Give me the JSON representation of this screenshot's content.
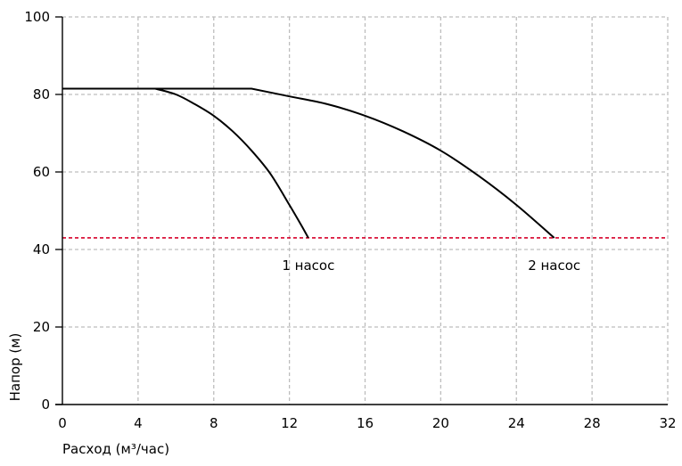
{
  "chart_data": {
    "type": "line",
    "title": "",
    "xlabel": "Расход (м³/час)",
    "ylabel": "Напор (м)",
    "xlim": [
      0,
      32
    ],
    "ylim": [
      0,
      100
    ],
    "xticks": [
      0,
      4,
      8,
      12,
      16,
      20,
      24,
      28,
      32
    ],
    "yticks": [
      0,
      20,
      40,
      60,
      80,
      100
    ],
    "grid": true,
    "series": [
      {
        "label": "1 насос",
        "color": "#000000",
        "points": [
          [
            0,
            81.5
          ],
          [
            4.9,
            81.5
          ],
          [
            6,
            80
          ],
          [
            7,
            77.5
          ],
          [
            8,
            74.5
          ],
          [
            9,
            70.5
          ],
          [
            10,
            65.5
          ],
          [
            11,
            59.5
          ],
          [
            12,
            51.5
          ],
          [
            12.6,
            46.5
          ],
          [
            13,
            43
          ]
        ]
      },
      {
        "label": "2 насос",
        "color": "#000000",
        "points": [
          [
            0,
            81.5
          ],
          [
            10,
            81.5
          ],
          [
            12,
            79.5
          ],
          [
            14,
            77.5
          ],
          [
            16,
            74.5
          ],
          [
            18,
            70.5
          ],
          [
            20,
            65.5
          ],
          [
            22,
            59
          ],
          [
            24,
            51.5
          ],
          [
            26,
            43
          ]
        ]
      }
    ],
    "reference_line": {
      "y": 43,
      "color": "#d6002a",
      "style": "dashed"
    }
  }
}
